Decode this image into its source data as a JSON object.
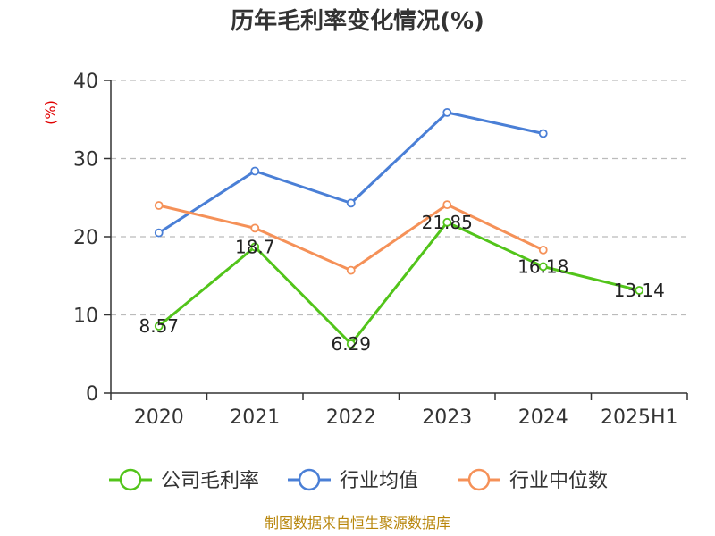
{
  "chart_data": {
    "type": "line",
    "title": "历年毛利率变化情况(%)",
    "ylabel": "(%)",
    "xlabel": "",
    "categories": [
      "2020",
      "2021",
      "2022",
      "2023",
      "2024",
      "2025H1"
    ],
    "ylim": [
      0,
      40
    ],
    "yticks": [
      "0",
      "10",
      "20",
      "30",
      "40"
    ],
    "grid": "horizontal-dashed",
    "legend_position": "bottom",
    "series": [
      {
        "name": "公司毛利率",
        "color": "#52c41a",
        "values": [
          8.57,
          18.7,
          6.29,
          21.85,
          16.18,
          13.14
        ],
        "labels": [
          "8.57",
          "18.7",
          "6.29",
          "21.85",
          "16.18",
          "13.14"
        ]
      },
      {
        "name": "行业均值",
        "color": "#4a7fd6",
        "values": [
          20.5,
          28.4,
          24.3,
          35.9,
          33.2,
          null
        ]
      },
      {
        "name": "行业中位数",
        "color": "#f59158",
        "values": [
          24.0,
          21.1,
          15.7,
          24.1,
          18.3,
          null
        ]
      }
    ]
  },
  "colors": {
    "axis": "#333333",
    "grid": "#bbbbbb",
    "unit": "#e00000",
    "source": "#b8860b"
  },
  "source": "制图数据来自恒生聚源数据库"
}
